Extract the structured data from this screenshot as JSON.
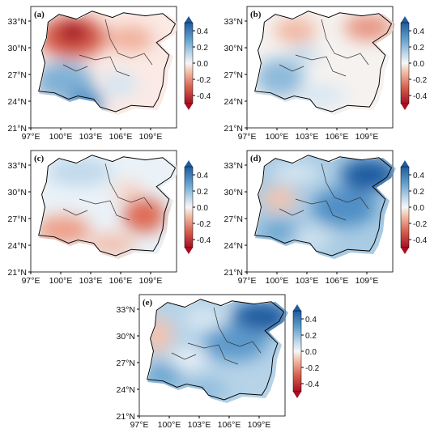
{
  "figure": {
    "x_ticks": [
      "97°E",
      "100°E",
      "103°E",
      "106°E",
      "109°E"
    ],
    "y_ticks": [
      "33°N",
      "30°N",
      "27°N",
      "24°N",
      "21°N"
    ],
    "colorbar": {
      "ticks": [
        "0.4",
        "0.2",
        "0.0",
        "-0.2",
        "-0.4"
      ],
      "range": [
        -0.5,
        0.5
      ],
      "colormap": "RdBu",
      "extend": "both",
      "colors": {
        "neg_strong": "#a50f22",
        "neg_mid": "#e0826a",
        "neutral": "#f7f7f7",
        "pos_mid": "#84b8d8",
        "pos_strong": "#1f5ba0"
      }
    }
  },
  "panels": [
    {
      "label": "(a)",
      "summary": "north-west strongly negative (~-0.4 near 30.5°N,101°E), east weakly negative, south-west positive (~0.2)"
    },
    {
      "label": "(b)",
      "summary": "north-east negative (~-0.2), south-west positive (~0.2), mostly near zero elsewhere"
    },
    {
      "label": "(c)",
      "summary": "north weakly positive, south-west and east (~27°N,107°E) negative (~-0.2)"
    },
    {
      "label": "(d)",
      "summary": "widespread positive, strongest (~0.4) in the north-east near 32°N,107°E; weak negative patch near 28°N,100°E"
    },
    {
      "label": "(e)",
      "summary": "widespread positive, strongest (~0.4) in the north-east near 32°N,108°E; weak negative in west near 29°N,98°E"
    }
  ]
}
